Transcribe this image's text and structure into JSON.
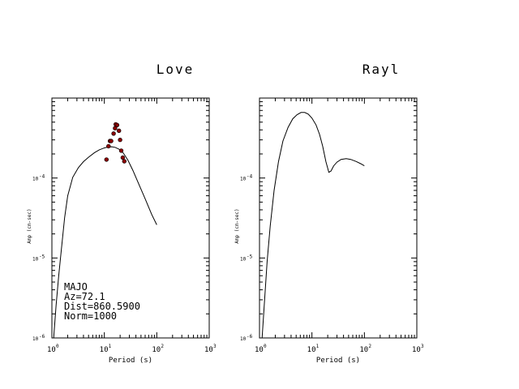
{
  "chart_data": [
    {
      "type": "line",
      "title": "Love",
      "xlabel": "Period (s)",
      "ylabel": "Amp (cm-sec)",
      "xscale": "log",
      "yscale": "log",
      "xlim": [
        1,
        1000
      ],
      "ylim": [
        1e-06,
        0.001
      ],
      "xticks": [
        {
          "base": "10",
          "exp": "0"
        },
        {
          "base": "10",
          "exp": "1"
        },
        {
          "base": "10",
          "exp": "2"
        },
        {
          "base": "10",
          "exp": "3"
        }
      ],
      "yticks": [
        {
          "base": "10",
          "exp": "-6"
        },
        {
          "base": "10",
          "exp": "-5"
        },
        {
          "base": "10",
          "exp": "-4"
        }
      ],
      "series": [
        {
          "kind": "line",
          "color": "#000000",
          "points": [
            [
              1.08,
              1e-06
            ],
            [
              1.2,
              2.5e-06
            ],
            [
              1.35,
              6e-06
            ],
            [
              1.5,
              1.2e-05
            ],
            [
              1.75,
              3.2e-05
            ],
            [
              2.0,
              6e-05
            ],
            [
              2.5,
              0.000102
            ],
            [
              3.2,
              0.000135
            ],
            [
              4.0,
              0.00016
            ],
            [
              5.0,
              0.000182
            ],
            [
              6.5,
              0.000208
            ],
            [
              8.0,
              0.000225
            ],
            [
              10.0,
              0.000238
            ],
            [
              12.0,
              0.000245
            ],
            [
              14.0,
              0.000246
            ],
            [
              16.0,
              0.000242
            ],
            [
              19.0,
              0.00023
            ],
            [
              23.0,
              0.000205
            ],
            [
              28.0,
              0.000168
            ],
            [
              35.0,
              0.000125
            ],
            [
              45.0,
              8.5e-05
            ],
            [
              60.0,
              5.5e-05
            ],
            [
              80.0,
              3.5e-05
            ],
            [
              100.0,
              2.6e-05
            ]
          ]
        },
        {
          "kind": "scatter",
          "color": "#8b0000",
          "points": [
            [
              11.0,
              0.00017
            ],
            [
              12.0,
              0.00025
            ],
            [
              12.8,
              0.00029
            ],
            [
              13.5,
              0.00029
            ],
            [
              15.0,
              0.00036
            ],
            [
              16.0,
              0.00042
            ],
            [
              16.5,
              0.00047
            ],
            [
              17.5,
              0.00046
            ],
            [
              19.0,
              0.00039
            ],
            [
              20.0,
              0.0003
            ],
            [
              21.0,
              0.00022
            ],
            [
              22.5,
              0.00018
            ],
            [
              24.0,
              0.000162
            ]
          ]
        }
      ],
      "annotation": [
        "MAJO",
        "Az=72.1",
        "Dist=860.5900",
        "Norm=1000"
      ]
    },
    {
      "type": "line",
      "title": "Rayl",
      "xlabel": "Period (s)",
      "ylabel": "Amp (cm-sec)",
      "xscale": "log",
      "yscale": "log",
      "xlim": [
        1,
        1000
      ],
      "ylim": [
        1e-06,
        0.001
      ],
      "xticks": [
        {
          "base": "10",
          "exp": "0"
        },
        {
          "base": "10",
          "exp": "1"
        },
        {
          "base": "10",
          "exp": "2"
        },
        {
          "base": "10",
          "exp": "3"
        }
      ],
      "yticks": [
        {
          "base": "10",
          "exp": "-6"
        },
        {
          "base": "10",
          "exp": "-5"
        },
        {
          "base": "10",
          "exp": "-4"
        }
      ],
      "series": [
        {
          "kind": "line",
          "color": "#000000",
          "points": [
            [
              1.0,
              1e-06
            ],
            [
              1.12,
              1e-06
            ],
            [
              1.25,
              3e-06
            ],
            [
              1.4,
              9e-06
            ],
            [
              1.6,
              2.5e-05
            ],
            [
              1.9,
              7e-05
            ],
            [
              2.3,
              0.00016
            ],
            [
              2.8,
              0.00029
            ],
            [
              3.5,
              0.00043
            ],
            [
              4.3,
              0.00055
            ],
            [
              5.2,
              0.00062
            ],
            [
              6.2,
              0.00066
            ],
            [
              7.3,
              0.00066
            ],
            [
              8.5,
              0.00063
            ],
            [
              10.0,
              0.00056
            ],
            [
              12.0,
              0.00046
            ],
            [
              14.0,
              0.00035
            ],
            [
              16.0,
              0.00025
            ],
            [
              18.5,
              0.00016
            ],
            [
              21.0,
              0.000118
            ],
            [
              23.0,
              0.000122
            ],
            [
              26.0,
              0.000142
            ],
            [
              30.0,
              0.000158
            ],
            [
              36.0,
              0.000171
            ],
            [
              45.0,
              0.000175
            ],
            [
              55.0,
              0.000171
            ],
            [
              70.0,
              0.000161
            ],
            [
              85.0,
              0.000151
            ],
            [
              100.0,
              0.000142
            ]
          ]
        }
      ]
    }
  ]
}
